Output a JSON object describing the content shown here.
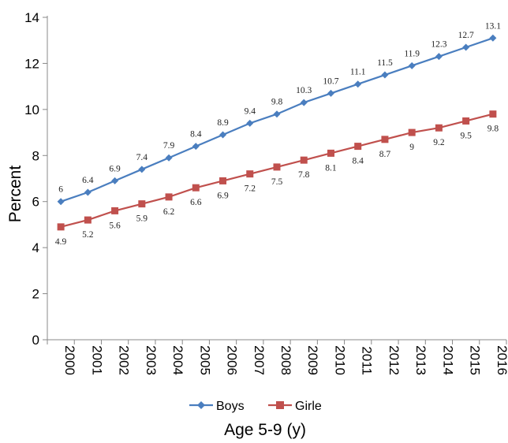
{
  "chart_data": {
    "type": "line",
    "title": "",
    "xlabel": "Age 5-9 (y)",
    "ylabel": "Percent",
    "x": [
      "2000",
      "2001",
      "2002",
      "2003",
      "2004",
      "2005",
      "2006",
      "2007",
      "2008",
      "2009",
      "2010",
      "2011",
      "2012",
      "2013",
      "2014",
      "2015",
      "2016"
    ],
    "ylim": [
      0,
      14
    ],
    "yticks": [
      "0",
      "2",
      "4",
      "6",
      "8",
      "10",
      "12",
      "14"
    ],
    "grid": false,
    "legend_position": "bottom",
    "series": [
      {
        "name": "Boys",
        "color": "#4a7ebf",
        "marker": "diamond",
        "values": [
          6,
          6.4,
          6.9,
          7.4,
          7.9,
          8.4,
          8.9,
          9.4,
          9.8,
          10.3,
          10.7,
          11.1,
          11.5,
          11.9,
          12.3,
          12.7,
          13.1
        ],
        "labels": [
          "6",
          "6.4",
          "6.9",
          "7.4",
          "7.9",
          "8.4",
          "8.9",
          "9.4",
          "9.8",
          "10.3",
          "10.7",
          "11.1",
          "11.5",
          "11.9",
          "12.3",
          "12.7",
          "13.1"
        ],
        "label_side": "above"
      },
      {
        "name": "Girle",
        "color": "#c0504d",
        "marker": "square",
        "values": [
          4.9,
          5.2,
          5.6,
          5.9,
          6.2,
          6.6,
          6.9,
          7.2,
          7.5,
          7.8,
          8.1,
          8.4,
          8.7,
          9,
          9.2,
          9.5,
          9.8
        ],
        "labels": [
          "4.9",
          "5.2",
          "5.6",
          "5.9",
          "6.2",
          "6.6",
          "6.9",
          "7.2",
          "7.5",
          "7.8",
          "8.1",
          "8.4",
          "8.7",
          "9",
          "9.2",
          "9.5",
          "9.8"
        ],
        "label_side": "below"
      }
    ]
  }
}
